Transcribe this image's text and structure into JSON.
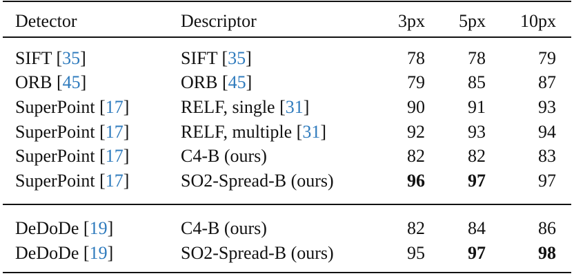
{
  "table": {
    "header": [
      "Detector",
      "Descriptor",
      "3px",
      "5px",
      "10px"
    ],
    "groups": [
      [
        {
          "detector": "SIFT",
          "detector_ref": "[35]",
          "descriptor": "SIFT",
          "descriptor_ref": "[35]",
          "scores": [
            78,
            78,
            79
          ],
          "bold": [
            false,
            false,
            false
          ]
        },
        {
          "detector": "ORB",
          "detector_ref": "[45]",
          "descriptor": "ORB",
          "descriptor_ref": "[45]",
          "scores": [
            79,
            85,
            87
          ],
          "bold": [
            false,
            false,
            false
          ]
        },
        {
          "detector": "SuperPoint",
          "detector_ref": "[17]",
          "descriptor": "RELF, single",
          "descriptor_ref": "[31]",
          "scores": [
            90,
            91,
            93
          ],
          "bold": [
            false,
            false,
            false
          ]
        },
        {
          "detector": "SuperPoint",
          "detector_ref": "[17]",
          "descriptor": "RELF, multiple",
          "descriptor_ref": "[31]",
          "scores": [
            92,
            93,
            94
          ],
          "bold": [
            false,
            false,
            false
          ]
        },
        {
          "detector": "SuperPoint",
          "detector_ref": "[17]",
          "descriptor": "C4-B (ours)",
          "scores": [
            82,
            82,
            83
          ],
          "bold": [
            false,
            false,
            false
          ]
        },
        {
          "detector": "SuperPoint",
          "detector_ref": "[17]",
          "descriptor": "SO2-Spread-B (ours)",
          "scores": [
            96,
            97,
            97
          ],
          "bold": [
            true,
            true,
            false
          ]
        }
      ],
      [
        {
          "detector": "DeDoDe",
          "detector_ref": "[19]",
          "descriptor": "C4-B (ours)",
          "scores": [
            82,
            84,
            86
          ],
          "bold": [
            false,
            false,
            false
          ]
        },
        {
          "detector": "DeDoDe",
          "detector_ref": "[19]",
          "descriptor": "SO2-Spread-B (ours)",
          "scores": [
            95,
            97,
            98
          ],
          "bold": [
            false,
            true,
            true
          ]
        }
      ]
    ]
  }
}
